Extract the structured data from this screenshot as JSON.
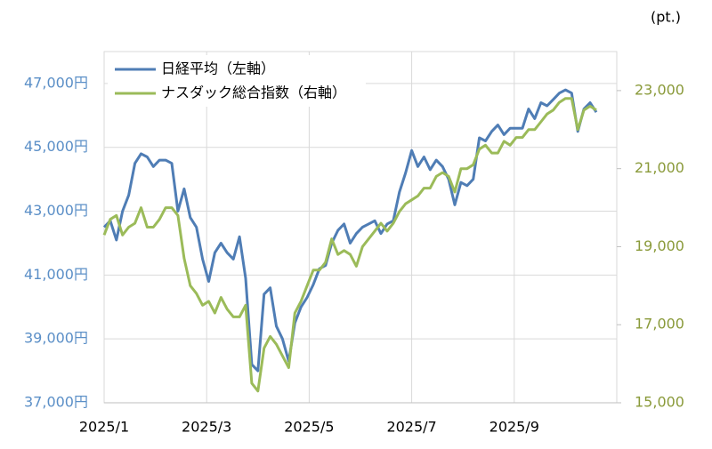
{
  "chart_data": {
    "type": "line",
    "annotation": "(pt.)",
    "x": [
      0,
      0.12,
      0.24,
      0.36,
      0.48,
      0.6,
      0.72,
      0.84,
      0.96,
      1.08,
      1.2,
      1.32,
      1.44,
      1.56,
      1.68,
      1.8,
      1.92,
      2.04,
      2.16,
      2.28,
      2.4,
      2.52,
      2.64,
      2.76,
      2.88,
      3,
      3.12,
      3.24,
      3.36,
      3.48,
      3.6,
      3.72,
      3.84,
      3.96,
      4.08,
      4.2,
      4.32,
      4.44,
      4.56,
      4.68,
      4.8,
      4.92,
      5.04,
      5.16,
      5.28,
      5.4,
      5.52,
      5.64,
      5.76,
      5.88,
      6,
      6.12,
      6.24,
      6.36,
      6.48,
      6.6,
      6.72,
      6.84,
      6.96,
      7.08,
      7.2,
      7.32,
      7.44,
      7.56,
      7.68,
      7.8,
      7.92,
      8.04,
      8.16,
      8.28,
      8.4,
      8.52,
      8.64,
      8.76,
      8.88,
      9,
      9.12,
      9.24,
      9.36,
      9.48,
      9.6
    ],
    "xlim": [
      0,
      10
    ],
    "xticks": [
      {
        "value": 0,
        "label": "2025/1"
      },
      {
        "value": 2,
        "label": "2025/3"
      },
      {
        "value": 4,
        "label": "2025/5"
      },
      {
        "value": 6,
        "label": "2025/7"
      },
      {
        "value": 8,
        "label": "2025/9"
      }
    ],
    "ylim": [
      37000,
      48000
    ],
    "yticks": [
      {
        "value": 37000,
        "label": "37,000円"
      },
      {
        "value": 39000,
        "label": "39,000円"
      },
      {
        "value": 41000,
        "label": "41,000円"
      },
      {
        "value": 43000,
        "label": "43,000円"
      },
      {
        "value": 45000,
        "label": "45,000円"
      },
      {
        "value": 47000,
        "label": "47,000円"
      }
    ],
    "y2lim": [
      15000,
      24000
    ],
    "y2ticks": [
      {
        "value": 15000,
        "label": "15,000"
      },
      {
        "value": 17000,
        "label": "17,000"
      },
      {
        "value": 19000,
        "label": "19,000"
      },
      {
        "value": 21000,
        "label": "21,000"
      },
      {
        "value": 23000,
        "label": "23,000"
      }
    ],
    "grid": true,
    "legend": "upper left",
    "series": [
      {
        "name": "日経平均（左軸）",
        "color": "#4f7db5",
        "values": [
          42500,
          42700,
          42100,
          43000,
          43500,
          44500,
          44800,
          44700,
          44400,
          44600,
          44600,
          44500,
          43000,
          43700,
          42800,
          42500,
          41500,
          40800,
          41700,
          42000,
          41700,
          41500,
          42200,
          40900,
          38200,
          38000,
          40400,
          40600,
          39400,
          39000,
          38300,
          39500,
          40000,
          40300,
          40700,
          41200,
          41300,
          42000,
          42400,
          42600,
          42000,
          42300,
          42500,
          42600,
          42700,
          42300,
          42600,
          42700,
          43600,
          44200,
          44900,
          44400,
          44700,
          44300,
          44600,
          44400,
          44000,
          43200,
          43900,
          43800,
          44000,
          45300,
          45200,
          45500,
          45700,
          45400,
          45600,
          45600,
          45600,
          46200,
          45900,
          46400,
          46300,
          46500,
          46700,
          46800,
          46700,
          45500,
          46200,
          46400,
          46100
        ]
      },
      {
        "name": "ナスダック総合指数（右軸）",
        "color": "#9bbb59",
        "axis": "y2",
        "values": [
          19300,
          19700,
          19800,
          19300,
          19500,
          19600,
          20000,
          19500,
          19500,
          19700,
          20000,
          20000,
          19800,
          18700,
          18000,
          17800,
          17500,
          17600,
          17300,
          17700,
          17400,
          17200,
          17200,
          17500,
          15500,
          15300,
          16400,
          16700,
          16500,
          16200,
          15900,
          17300,
          17600,
          18000,
          18400,
          18400,
          18600,
          19200,
          18800,
          18900,
          18800,
          18500,
          19000,
          19200,
          19400,
          19600,
          19400,
          19600,
          19900,
          20100,
          20200,
          20300,
          20500,
          20500,
          20800,
          20900,
          20800,
          20400,
          21000,
          21000,
          21100,
          21500,
          21600,
          21400,
          21400,
          21700,
          21600,
          21800,
          21800,
          22000,
          22000,
          22200,
          22400,
          22500,
          22700,
          22800,
          22800,
          22000,
          22500,
          22600,
          22500
        ]
      }
    ]
  }
}
